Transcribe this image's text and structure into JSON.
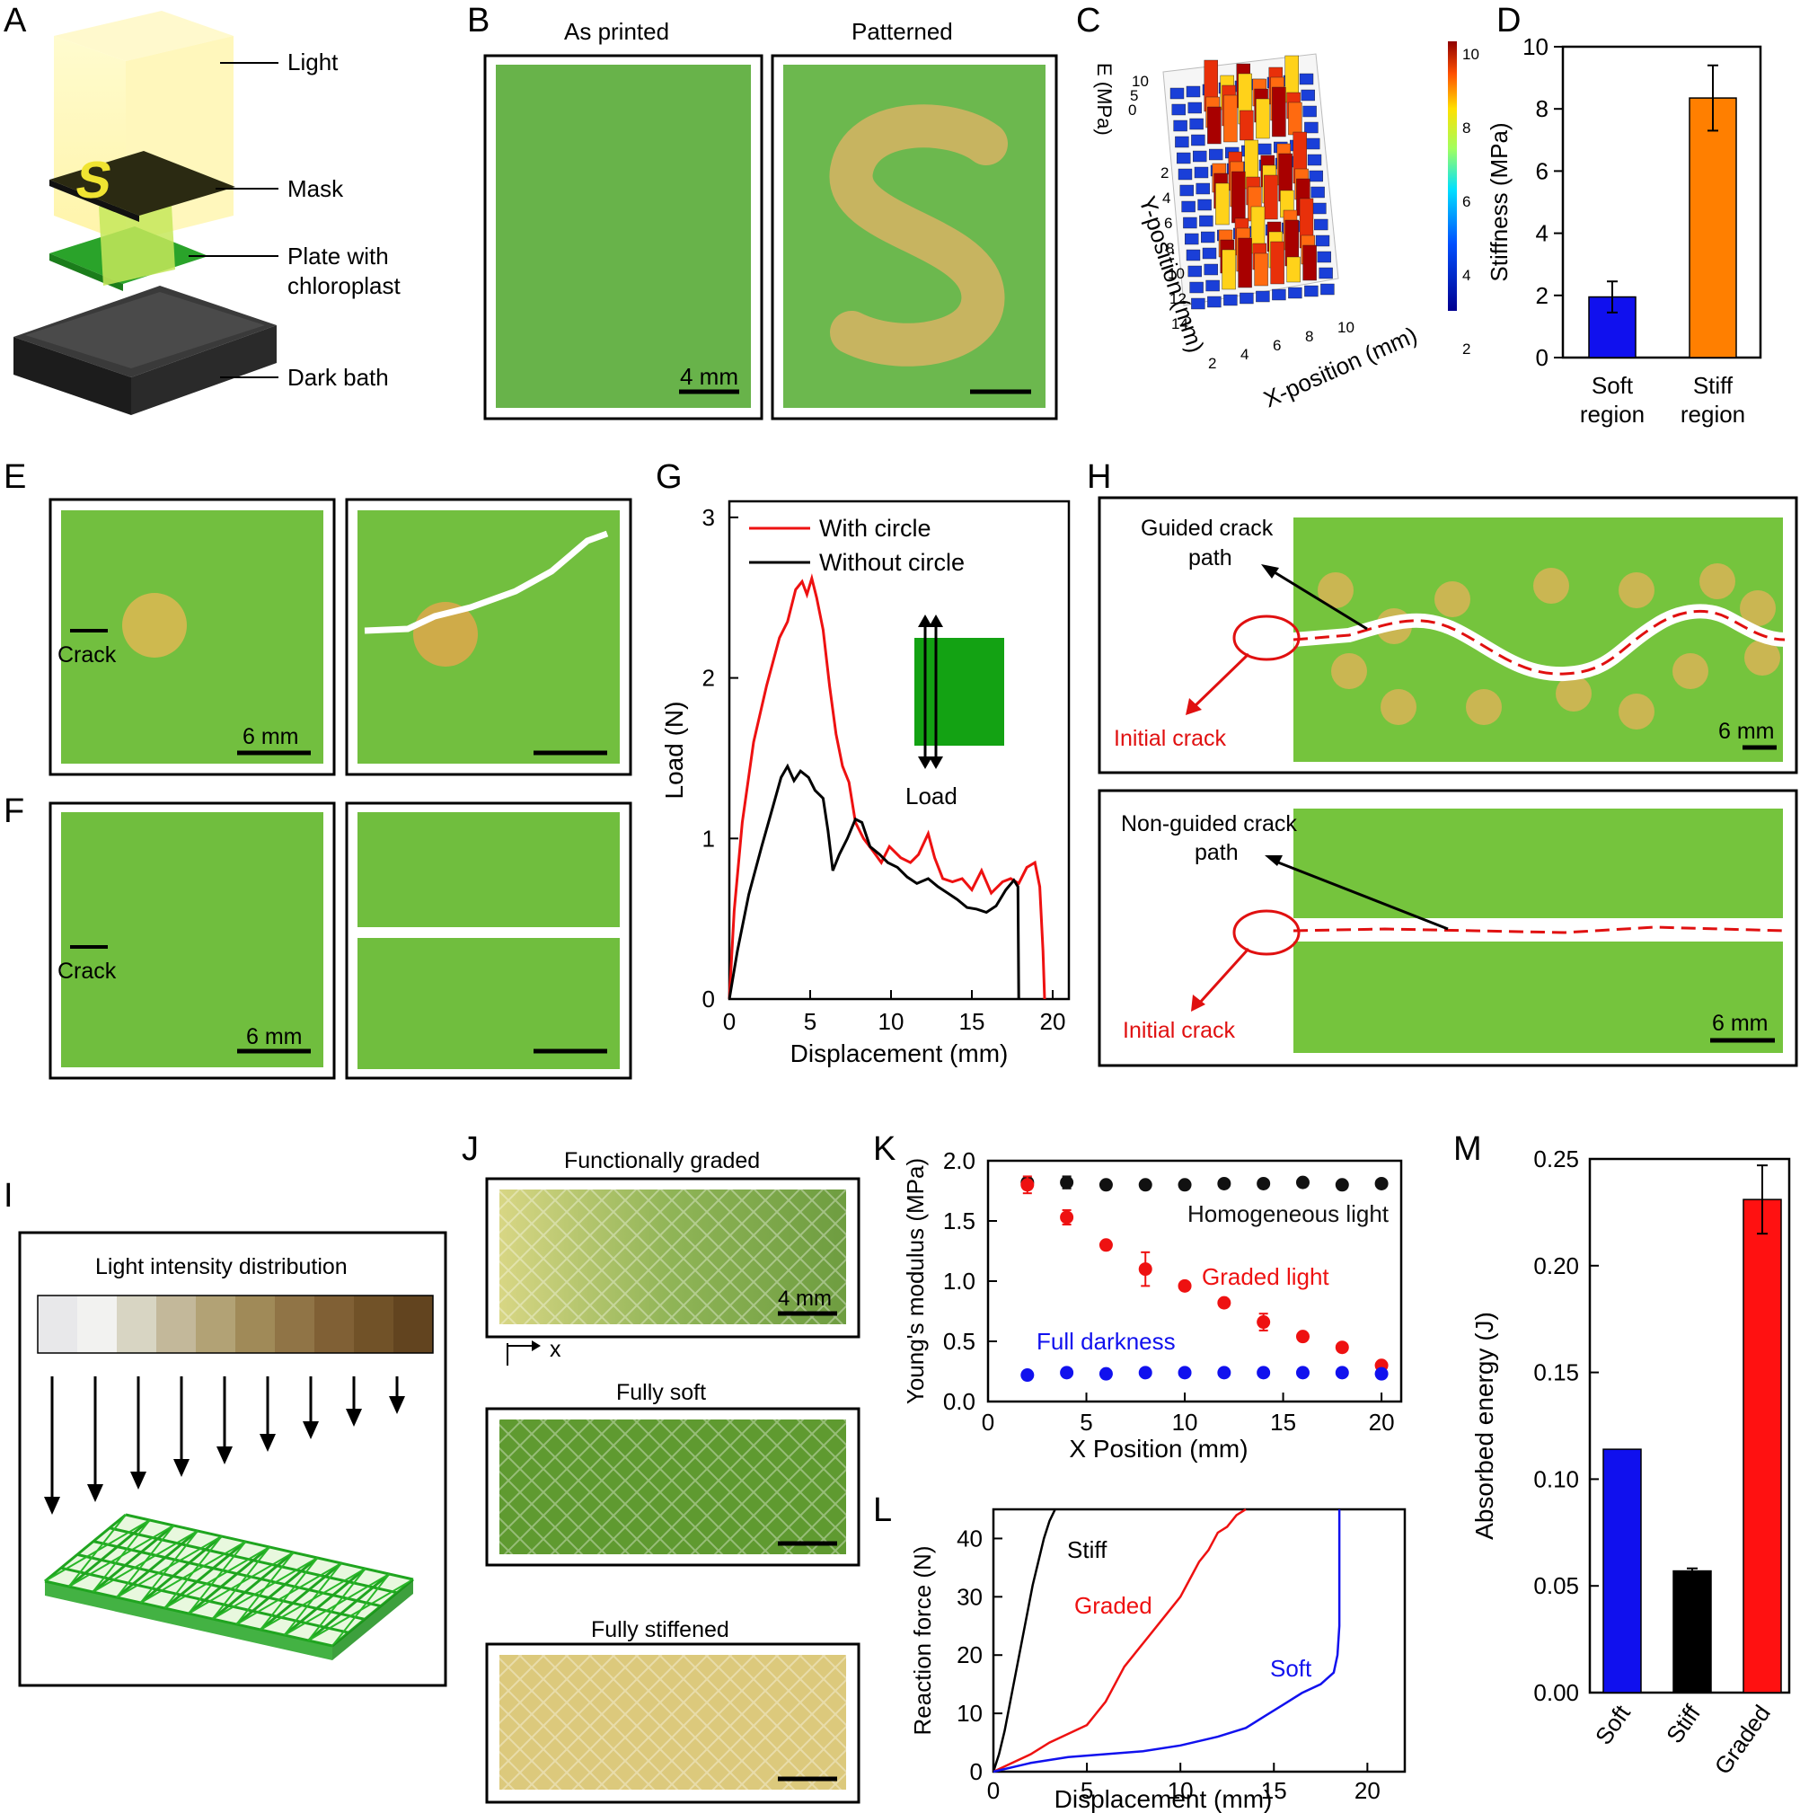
{
  "panel_letters": [
    "A",
    "B",
    "C",
    "D",
    "E",
    "F",
    "G",
    "H",
    "I",
    "J",
    "K",
    "L",
    "M"
  ],
  "panel_a": {
    "labels": [
      "Light",
      "Mask",
      "Plate with",
      "chloroplast",
      "Dark bath"
    ],
    "mask_letter": "S"
  },
  "panel_b": {
    "titles": [
      "As printed",
      "Patterned"
    ],
    "scale": "4 mm"
  },
  "panel_c": {
    "zlabel": "E (MPa)",
    "ylabel": "Y-position (mm)",
    "xlabel": "X-position (mm)",
    "ztick_labels": [
      "10",
      "5",
      "0"
    ],
    "ytick_labels": [
      "2",
      "4",
      "6",
      "8",
      "10",
      "12",
      "14"
    ],
    "xtick_labels": [
      "2",
      "4",
      "6",
      "8",
      "10"
    ],
    "colorbar_ticks": [
      "10",
      "8",
      "6",
      "4",
      "2"
    ]
  },
  "panel_e": {
    "crack": "Crack",
    "scale": "6 mm"
  },
  "panel_f": {
    "crack": "Crack",
    "scale": "6 mm"
  },
  "panel_h": {
    "top": {
      "guided": "Guided crack",
      "path": "path",
      "initial": "Initial crack",
      "scale": "6 mm"
    },
    "bottom": {
      "guided": "Non-guided crack",
      "path": "path",
      "initial": "Initial crack",
      "scale": "6 mm"
    }
  },
  "panel_i": {
    "title": "Light intensity distribution"
  },
  "panel_j": {
    "titles": [
      "Functionally graded",
      "Fully soft",
      "Fully stiffened"
    ],
    "scale": "4 mm",
    "axis": "x"
  },
  "chart_data": [
    {
      "panel": "D",
      "type": "bar",
      "categories": [
        "Soft\nregion",
        "Stiff\nregion"
      ],
      "values": [
        1.95,
        8.35
      ],
      "errors": [
        0.5,
        1.05
      ],
      "colors": [
        "#1010ee",
        "#ff7f00"
      ],
      "xlabel": "",
      "ylabel": "Stiffness (MPa)",
      "ylim": [
        0,
        10
      ],
      "yticks": [
        "0",
        "2",
        "4",
        "6",
        "8",
        "10"
      ]
    },
    {
      "panel": "G",
      "type": "line",
      "xlabel": "Displacement (mm)",
      "ylabel": "Load (N)",
      "xlim": [
        0,
        21
      ],
      "ylim": [
        0,
        3.1
      ],
      "xticks": [
        "0",
        "5",
        "10",
        "15",
        "20"
      ],
      "yticks": [
        "0",
        "1",
        "2",
        "3"
      ],
      "inset_label": "Load",
      "series": [
        {
          "name": "With circle",
          "color": "#ee1111",
          "points": [
            [
              0,
              0
            ],
            [
              0.3,
              0.55
            ],
            [
              0.8,
              1.1
            ],
            [
              1.5,
              1.6
            ],
            [
              2.3,
              1.95
            ],
            [
              3.1,
              2.25
            ],
            [
              3.6,
              2.35
            ],
            [
              4.1,
              2.55
            ],
            [
              4.5,
              2.6
            ],
            [
              4.8,
              2.52
            ],
            [
              5.1,
              2.62
            ],
            [
              5.4,
              2.5
            ],
            [
              5.8,
              2.3
            ],
            [
              6.2,
              1.95
            ],
            [
              6.6,
              1.65
            ],
            [
              7.0,
              1.45
            ],
            [
              7.4,
              1.35
            ],
            [
              7.8,
              1.1
            ],
            [
              8.3,
              1.0
            ],
            [
              8.9,
              0.92
            ],
            [
              9.4,
              0.85
            ],
            [
              9.9,
              0.95
            ],
            [
              10.6,
              0.88
            ],
            [
              11.2,
              0.85
            ],
            [
              11.7,
              0.9
            ],
            [
              12.3,
              1.03
            ],
            [
              12.7,
              0.88
            ],
            [
              13.2,
              0.75
            ],
            [
              13.8,
              0.73
            ],
            [
              14.4,
              0.75
            ],
            [
              15.0,
              0.68
            ],
            [
              15.6,
              0.8
            ],
            [
              16.2,
              0.66
            ],
            [
              16.9,
              0.73
            ],
            [
              17.4,
              0.75
            ],
            [
              17.9,
              0.72
            ],
            [
              18.4,
              0.82
            ],
            [
              18.9,
              0.85
            ],
            [
              19.2,
              0.7
            ],
            [
              19.4,
              0.3
            ],
            [
              19.5,
              0
            ]
          ]
        },
        {
          "name": "Without circle",
          "color": "#000000",
          "points": [
            [
              0,
              0
            ],
            [
              0.5,
              0.3
            ],
            [
              1.2,
              0.65
            ],
            [
              2.0,
              0.95
            ],
            [
              2.7,
              1.2
            ],
            [
              3.2,
              1.38
            ],
            [
              3.6,
              1.45
            ],
            [
              4.0,
              1.36
            ],
            [
              4.4,
              1.42
            ],
            [
              4.9,
              1.38
            ],
            [
              5.3,
              1.3
            ],
            [
              5.8,
              1.25
            ],
            [
              6.1,
              1.05
            ],
            [
              6.4,
              0.8
            ],
            [
              6.8,
              0.9
            ],
            [
              7.3,
              1.0
            ],
            [
              7.8,
              1.12
            ],
            [
              8.2,
              1.1
            ],
            [
              8.7,
              0.95
            ],
            [
              9.3,
              0.9
            ],
            [
              9.8,
              0.85
            ],
            [
              10.4,
              0.82
            ],
            [
              11.0,
              0.76
            ],
            [
              11.6,
              0.72
            ],
            [
              12.3,
              0.75
            ],
            [
              12.9,
              0.7
            ],
            [
              13.5,
              0.66
            ],
            [
              14.1,
              0.62
            ],
            [
              14.7,
              0.57
            ],
            [
              15.3,
              0.56
            ],
            [
              15.9,
              0.54
            ],
            [
              16.5,
              0.58
            ],
            [
              17.1,
              0.68
            ],
            [
              17.6,
              0.74
            ],
            [
              17.85,
              0.7
            ],
            [
              17.9,
              0
            ]
          ]
        }
      ]
    },
    {
      "panel": "K",
      "type": "scatter",
      "xlabel": "X Position (mm)",
      "ylabel": "Young's modulus (MPa)",
      "xlim": [
        0,
        21
      ],
      "ylim": [
        0,
        2.0
      ],
      "xticks": [
        "0",
        "5",
        "10",
        "15",
        "20"
      ],
      "yticks": [
        "0.0",
        "0.5",
        "1.0",
        "1.5",
        "2.0"
      ],
      "series": [
        {
          "name": "Homogeneous light",
          "color": "#111111",
          "points": [
            [
              2,
              1.82
            ],
            [
              4,
              1.82
            ],
            [
              6,
              1.8
            ],
            [
              8,
              1.8
            ],
            [
              10,
              1.8
            ],
            [
              12,
              1.81
            ],
            [
              14,
              1.81
            ],
            [
              16,
              1.82
            ],
            [
              18,
              1.8
            ],
            [
              20,
              1.81
            ]
          ],
          "errors": [
            0.03,
            0.05,
            0.02,
            0.02,
            0.02,
            0.02,
            0.02,
            0.02,
            0.02,
            0.02
          ]
        },
        {
          "name": "Graded light",
          "color": "#ee1111",
          "points": [
            [
              2,
              1.8
            ],
            [
              4,
              1.53
            ],
            [
              6,
              1.3
            ],
            [
              8,
              1.1
            ],
            [
              10,
              0.96
            ],
            [
              12,
              0.82
            ],
            [
              14,
              0.66
            ],
            [
              16,
              0.54
            ],
            [
              18,
              0.45
            ],
            [
              20,
              0.3
            ]
          ],
          "errors": [
            0.07,
            0.06,
            0.02,
            0.14,
            0.02,
            0.02,
            0.07,
            0.03,
            0.02,
            0.03
          ]
        },
        {
          "name": "Full darkness",
          "color": "#1111ee",
          "points": [
            [
              2,
              0.22
            ],
            [
              4,
              0.24
            ],
            [
              6,
              0.23
            ],
            [
              8,
              0.24
            ],
            [
              10,
              0.24
            ],
            [
              12,
              0.24
            ],
            [
              14,
              0.24
            ],
            [
              16,
              0.24
            ],
            [
              18,
              0.24
            ],
            [
              20,
              0.23
            ]
          ],
          "errors": [
            0,
            0,
            0,
            0,
            0,
            0,
            0,
            0,
            0,
            0
          ]
        }
      ]
    },
    {
      "panel": "L",
      "type": "line",
      "xlabel": "Displacement (mm)",
      "ylabel": "Reaction force (N)",
      "xlim": [
        0,
        22
      ],
      "ylim": [
        0,
        45
      ],
      "xticks": [
        "0",
        "5",
        "10",
        "15",
        "20"
      ],
      "yticks": [
        "0",
        "10",
        "20",
        "30",
        "40"
      ],
      "series": [
        {
          "name": "Stiff",
          "color": "#000000",
          "points": [
            [
              0,
              0
            ],
            [
              0.3,
              3
            ],
            [
              0.6,
              7
            ],
            [
              0.9,
              12
            ],
            [
              1.2,
              17
            ],
            [
              1.5,
              22
            ],
            [
              1.8,
              27
            ],
            [
              2.1,
              32
            ],
            [
              2.4,
              36
            ],
            [
              2.7,
              40
            ],
            [
              3.0,
              43
            ],
            [
              3.3,
              45
            ]
          ]
        },
        {
          "name": "Graded",
          "color": "#ee1111",
          "points": [
            [
              0,
              0
            ],
            [
              1,
              1.5
            ],
            [
              2,
              3
            ],
            [
              3,
              5
            ],
            [
              4,
              6.5
            ],
            [
              5,
              8
            ],
            [
              5.5,
              10
            ],
            [
              6,
              12
            ],
            [
              6.5,
              15
            ],
            [
              7,
              18
            ],
            [
              8,
              22
            ],
            [
              9,
              26
            ],
            [
              10,
              30
            ],
            [
              10.5,
              33
            ],
            [
              11,
              36
            ],
            [
              11.5,
              38
            ],
            [
              12,
              41
            ],
            [
              12.5,
              42
            ],
            [
              13,
              44
            ],
            [
              13.5,
              45
            ]
          ]
        },
        {
          "name": "Soft",
          "color": "#1111ee",
          "points": [
            [
              0,
              0
            ],
            [
              2,
              1.5
            ],
            [
              4,
              2.5
            ],
            [
              6,
              3
            ],
            [
              8,
              3.5
            ],
            [
              10,
              4.5
            ],
            [
              12,
              6
            ],
            [
              13.5,
              7.5
            ],
            [
              14.5,
              9.5
            ],
            [
              15.5,
              11.5
            ],
            [
              16.5,
              13.5
            ],
            [
              17.5,
              15
            ],
            [
              18.2,
              17
            ],
            [
              18.4,
              20
            ],
            [
              18.5,
              25
            ],
            [
              18.5,
              35
            ],
            [
              18.5,
              45
            ]
          ]
        }
      ]
    },
    {
      "panel": "M",
      "type": "bar",
      "categories": [
        "Soft",
        "Stiff",
        "Graded"
      ],
      "values": [
        0.114,
        0.057,
        0.231
      ],
      "errors": [
        0.0,
        0.0012,
        0.016
      ],
      "colors": [
        "#1010ee",
        "#000000",
        "#ff1111"
      ],
      "xlabel": "",
      "ylabel": "Absorbed energy (J)",
      "ylim": [
        0,
        0.25
      ],
      "yticks": [
        "0.00",
        "0.05",
        "0.10",
        "0.15",
        "0.20",
        "0.25"
      ]
    }
  ]
}
